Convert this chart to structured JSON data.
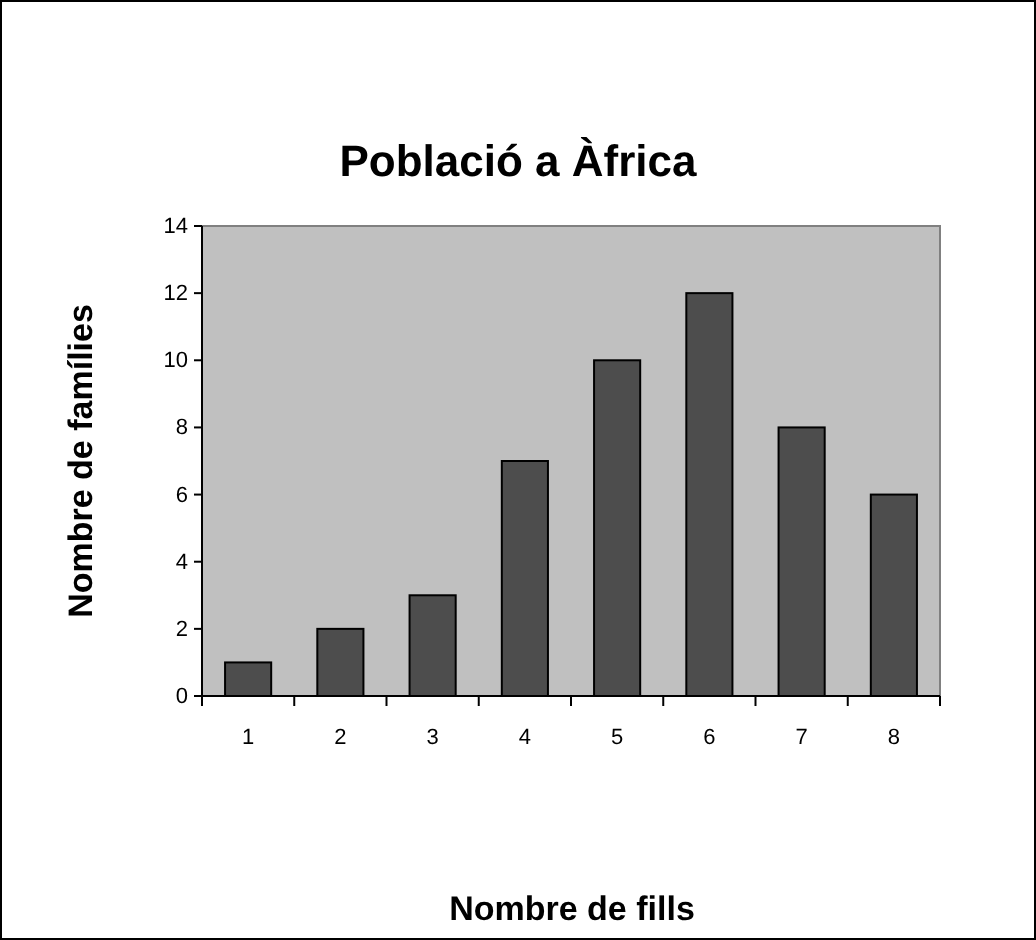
{
  "chart_data": {
    "type": "bar",
    "title": "Població a Àfrica",
    "xlabel": "Nombre de fills",
    "ylabel": "Nombre de famílies",
    "categories": [
      "1",
      "2",
      "3",
      "4",
      "5",
      "6",
      "7",
      "8"
    ],
    "values": [
      1,
      2,
      3,
      7,
      10,
      12,
      8,
      6
    ],
    "color": "#4d4d4d",
    "ylim": [
      0,
      14
    ],
    "yticks": [
      0,
      2,
      4,
      6,
      8,
      10,
      12,
      14
    ],
    "grid": false
  }
}
